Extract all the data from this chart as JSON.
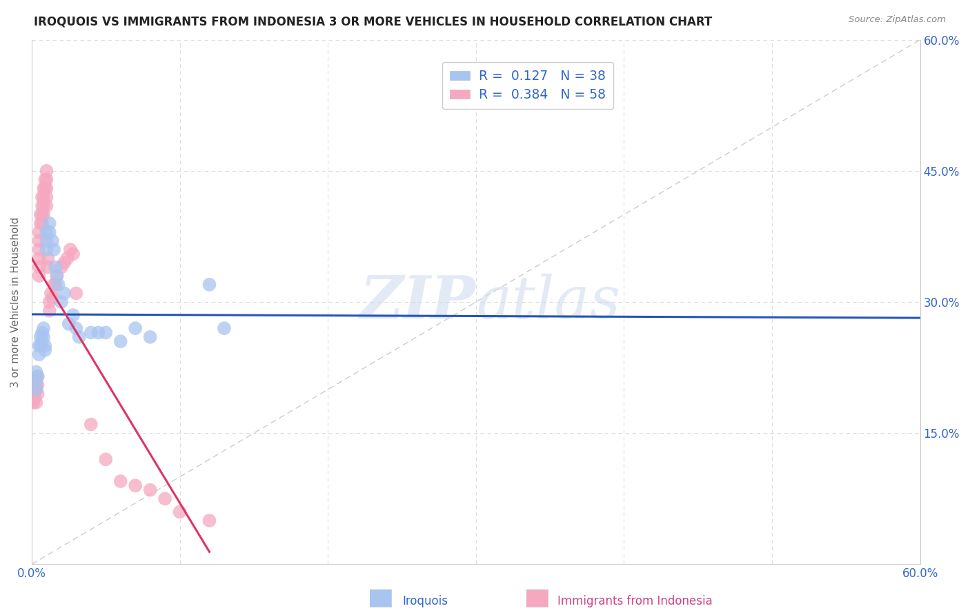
{
  "title": "IROQUOIS VS IMMIGRANTS FROM INDONESIA 3 OR MORE VEHICLES IN HOUSEHOLD CORRELATION CHART",
  "source": "Source: ZipAtlas.com",
  "ylabel": "3 or more Vehicles in Household",
  "xlim": [
    0.0,
    0.6
  ],
  "ylim": [
    0.0,
    0.6
  ],
  "xticks": [
    0.0,
    0.1,
    0.2,
    0.3,
    0.4,
    0.5,
    0.6
  ],
  "yticks": [
    0.0,
    0.15,
    0.3,
    0.45,
    0.6
  ],
  "xticklabels": [
    "0.0%",
    "",
    "",
    "",
    "",
    "",
    "60.0%"
  ],
  "yticklabels_right": [
    "",
    "15.0%",
    "30.0%",
    "45.0%",
    "60.0%"
  ],
  "legend_R_blue": "0.127",
  "legend_N_blue": "38",
  "legend_R_pink": "0.384",
  "legend_N_pink": "58",
  "blue_scatter_color": "#a8c4f0",
  "pink_scatter_color": "#f5a8c0",
  "blue_line_color": "#2255bb",
  "pink_line_color": "#dd3366",
  "diag_line_color": "#cccccc",
  "watermark_color": "#ccd8ee",
  "iroquois_x": [
    0.003,
    0.003,
    0.003,
    0.004,
    0.005,
    0.005,
    0.006,
    0.006,
    0.007,
    0.007,
    0.008,
    0.008,
    0.009,
    0.009,
    0.01,
    0.01,
    0.01,
    0.012,
    0.012,
    0.014,
    0.015,
    0.016,
    0.017,
    0.018,
    0.02,
    0.022,
    0.025,
    0.028,
    0.03,
    0.032,
    0.04,
    0.045,
    0.05,
    0.06,
    0.07,
    0.08,
    0.12,
    0.13
  ],
  "iroquois_y": [
    0.22,
    0.21,
    0.2,
    0.215,
    0.25,
    0.24,
    0.26,
    0.25,
    0.255,
    0.265,
    0.27,
    0.26,
    0.25,
    0.245,
    0.38,
    0.37,
    0.36,
    0.39,
    0.38,
    0.37,
    0.36,
    0.34,
    0.33,
    0.32,
    0.3,
    0.31,
    0.275,
    0.285,
    0.27,
    0.26,
    0.265,
    0.265,
    0.265,
    0.255,
    0.27,
    0.26,
    0.32,
    0.27
  ],
  "indonesia_x": [
    0.001,
    0.001,
    0.002,
    0.002,
    0.002,
    0.003,
    0.003,
    0.003,
    0.003,
    0.004,
    0.004,
    0.004,
    0.005,
    0.005,
    0.005,
    0.005,
    0.005,
    0.005,
    0.006,
    0.006,
    0.007,
    0.007,
    0.007,
    0.007,
    0.008,
    0.008,
    0.008,
    0.008,
    0.009,
    0.009,
    0.01,
    0.01,
    0.01,
    0.01,
    0.01,
    0.011,
    0.011,
    0.012,
    0.012,
    0.013,
    0.014,
    0.015,
    0.016,
    0.017,
    0.02,
    0.022,
    0.024,
    0.026,
    0.028,
    0.03,
    0.04,
    0.05,
    0.06,
    0.07,
    0.08,
    0.09,
    0.1,
    0.12
  ],
  "indonesia_y": [
    0.195,
    0.185,
    0.205,
    0.2,
    0.19,
    0.21,
    0.205,
    0.2,
    0.185,
    0.215,
    0.205,
    0.195,
    0.38,
    0.37,
    0.36,
    0.35,
    0.34,
    0.33,
    0.4,
    0.39,
    0.42,
    0.41,
    0.4,
    0.39,
    0.43,
    0.42,
    0.41,
    0.4,
    0.44,
    0.43,
    0.45,
    0.44,
    0.43,
    0.42,
    0.41,
    0.35,
    0.34,
    0.3,
    0.29,
    0.31,
    0.305,
    0.32,
    0.32,
    0.33,
    0.34,
    0.345,
    0.35,
    0.36,
    0.355,
    0.31,
    0.16,
    0.12,
    0.095,
    0.09,
    0.085,
    0.075,
    0.06,
    0.05
  ]
}
